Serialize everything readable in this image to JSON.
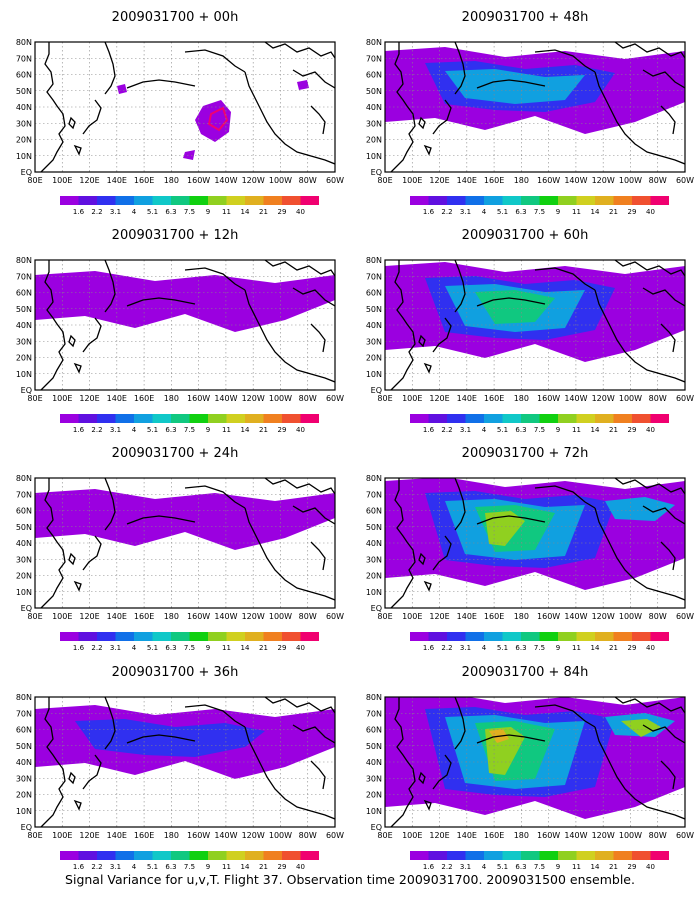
{
  "caption": "Signal Variance for u,v,T. Flight 37. Observation time 2009031700. 2009031500 ensemble.",
  "lat_labels": [
    "80N",
    "70N",
    "60N",
    "50N",
    "40N",
    "30N",
    "20N",
    "10N",
    "EQ"
  ],
  "lon_labels": [
    "80E",
    "100E",
    "120E",
    "140E",
    "160E",
    "180",
    "160W",
    "140W",
    "120W",
    "100W",
    "80W",
    "60W"
  ],
  "colorbar": {
    "labels": [
      "1.6",
      "2.2",
      "3.1",
      "4",
      "5.1",
      "6.3",
      "7.5",
      "9",
      "11",
      "14",
      "21",
      "29",
      "40"
    ],
    "colors": [
      "#9b00e0",
      "#6010e0",
      "#3030f0",
      "#1070e8",
      "#10a0e0",
      "#10c8c8",
      "#10c880",
      "#10d010",
      "#90d020",
      "#d0d020",
      "#e0b020",
      "#f08020",
      "#f05030",
      "#f00070"
    ]
  },
  "panels": [
    {
      "id": "00h",
      "title": "2009031700 + 00h",
      "level": 0
    },
    {
      "id": "48h",
      "title": "2009031700 + 48h",
      "level": 3
    },
    {
      "id": "12h",
      "title": "2009031700 + 12h",
      "level": 1
    },
    {
      "id": "60h",
      "title": "2009031700 + 60h",
      "level": 4
    },
    {
      "id": "24h",
      "title": "2009031700 + 24h",
      "level": 1
    },
    {
      "id": "72h",
      "title": "2009031700 + 72h",
      "level": 5
    },
    {
      "id": "36h",
      "title": "2009031700 + 36h",
      "level": 2
    },
    {
      "id": "84h",
      "title": "2009031700 + 84h",
      "level": 6
    }
  ]
}
